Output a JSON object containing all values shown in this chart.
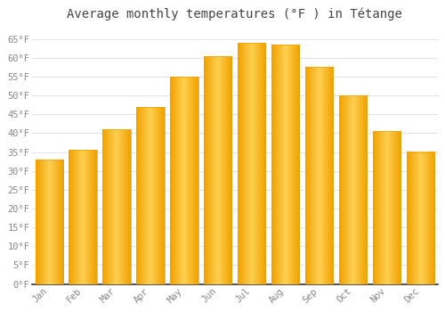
{
  "title": "Average monthly temperatures (°F ) in Tétange",
  "months": [
    "Jan",
    "Feb",
    "Mar",
    "Apr",
    "May",
    "Jun",
    "Jul",
    "Aug",
    "Sep",
    "Oct",
    "Nov",
    "Dec"
  ],
  "values": [
    33,
    35.5,
    41,
    47,
    55,
    60.5,
    64,
    63.5,
    57.5,
    50,
    40.5,
    35
  ],
  "bar_color_center": "#FFD050",
  "bar_color_edge": "#F0A000",
  "background_color": "#FFFFFF",
  "grid_color": "#DDDDDD",
  "ytick_labels": [
    "0°F",
    "5°F",
    "10°F",
    "15°F",
    "20°F",
    "25°F",
    "30°F",
    "35°F",
    "40°F",
    "45°F",
    "50°F",
    "55°F",
    "60°F",
    "65°F"
  ],
  "ytick_values": [
    0,
    5,
    10,
    15,
    20,
    25,
    30,
    35,
    40,
    45,
    50,
    55,
    60,
    65
  ],
  "ylim": [
    0,
    68
  ],
  "title_fontsize": 10,
  "tick_fontsize": 7.5,
  "title_color": "#444444",
  "tick_color": "#888888",
  "bar_width": 0.82,
  "spine_color": "#333333"
}
